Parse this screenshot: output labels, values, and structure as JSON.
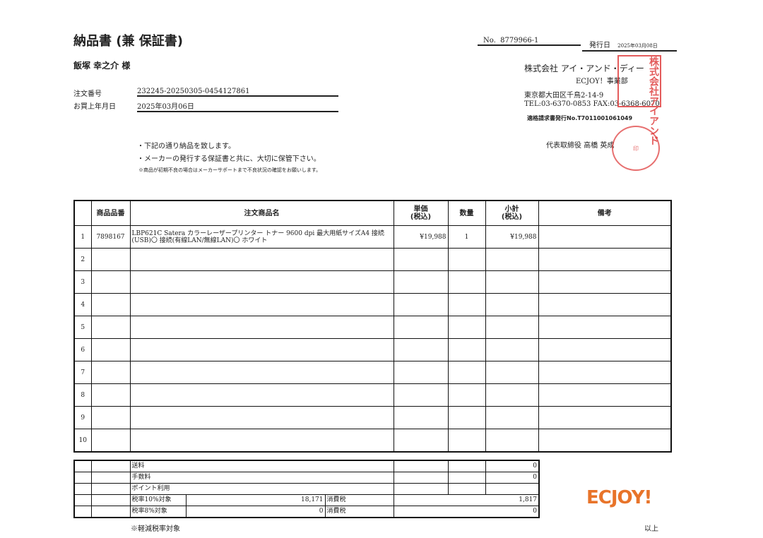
{
  "title": "納品書 (兼 保証書)",
  "customer": "飯塚 幸之介 様",
  "order": {
    "number_label": "注文番号",
    "number": "232245-20250305-0454127861",
    "date_label": "お買上年月日",
    "date": "2025年03月06日"
  },
  "doc": {
    "no_label": "No.",
    "no": "8779966-1",
    "issue_label": "発行日",
    "issue_date": "2025年03月08日"
  },
  "company": {
    "name": "株式会社 アイ・アンド・ディー",
    "dept": "ECJOY！事業部",
    "address": "東京都大田区千鳥2-14-9",
    "tel": "TEL:03-6370-0853  FAX:03-6368-6070",
    "invoice_no": "適格請求書発行No.T7011001061049",
    "representative": "代表取締役 高橋 英成",
    "seal_text": "株式会社アイアンドディー之印"
  },
  "notes": [
    "・下記の通り納品を致します。",
    "・メーカーの発行する保証書と共に、大切に保管下さい。",
    "※商品が初期不良の場合はメーカーサポートまで不良状況の確認をお願いします。"
  ],
  "table": {
    "headers": [
      "",
      "商品品番",
      "注文商品名",
      "単価\n(税込)",
      "数量",
      "小計\n(税込)",
      "備考"
    ],
    "rows": [
      [
        "1",
        "7898167",
        "LBP621C Satera カラーレーザープリンター トナー 9600 dpi 最大用紙サイズA4 接続(USB)〇 接続(有線LAN/無線LAN)〇 ホワイト",
        "¥19,988",
        "1",
        "¥19,988",
        ""
      ],
      [
        "2",
        "",
        "",
        "",
        "",
        "",
        ""
      ],
      [
        "3",
        "",
        "",
        "",
        "",
        "",
        ""
      ],
      [
        "4",
        "",
        "",
        "",
        "",
        "",
        ""
      ],
      [
        "5",
        "",
        "",
        "",
        "",
        "",
        ""
      ],
      [
        "6",
        "",
        "",
        "",
        "",
        "",
        ""
      ],
      [
        "7",
        "",
        "",
        "",
        "",
        "",
        ""
      ],
      [
        "8",
        "",
        "",
        "",
        "",
        "",
        ""
      ],
      [
        "9",
        "",
        "",
        "",
        "",
        "",
        ""
      ],
      [
        "10",
        "",
        "",
        "",
        "",
        "",
        ""
      ]
    ]
  },
  "footer": {
    "shipping_label": "送料",
    "shipping": "0",
    "fee_label": "手数料",
    "fee": "0",
    "points_label": "ポイント利用",
    "points": "",
    "tax10_label": "税率10%対象",
    "tax10_base": "18,171",
    "tax10_tax_label": "消費税",
    "tax10_tax": "1,817",
    "tax8_label": "税率8%対象",
    "tax8_base": "0",
    "tax8_tax_label": "消費税",
    "tax8_tax": "0",
    "reduced_note": "※軽減税率対象",
    "end": "以上"
  },
  "logo": "ECJOY!",
  "colors": {
    "logo": "#e8742a",
    "seal": "#d33333"
  }
}
